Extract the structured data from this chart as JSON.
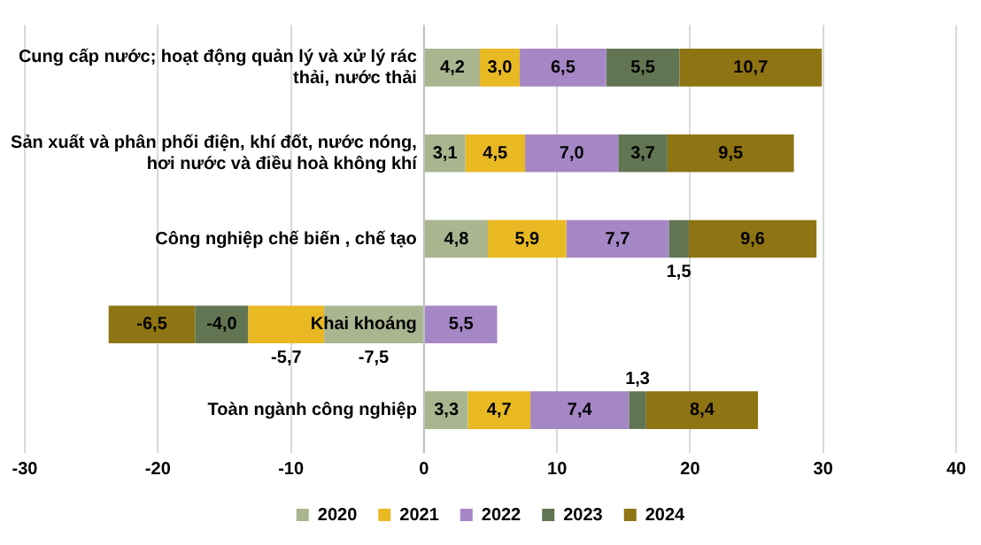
{
  "chart_data": {
    "type": "bar",
    "orientation": "horizontal",
    "stacked": true,
    "categories": [
      "Cung cấp nước; hoạt động quản lý và xử lý rác thải, nước thải",
      "Sản xuất và phân phối điện, khí đốt, nước nóng, hơi nước và điều hoà không khí",
      "Công nghiệp chế biến , chế tạo",
      "Khai khoáng",
      "Toàn ngành công nghiệp"
    ],
    "series": [
      {
        "name": "2020",
        "color": "#a9b58f",
        "values": [
          4.2,
          3.1,
          4.8,
          -7.5,
          3.3
        ],
        "value_labels": [
          "4,2",
          "3,1",
          "4,8",
          "-7,5",
          "3,3"
        ]
      },
      {
        "name": "2021",
        "color": "#e8b923",
        "values": [
          3.0,
          4.5,
          5.9,
          -5.7,
          4.7
        ],
        "value_labels": [
          "3,0",
          "4,5",
          "5,9",
          "-5,7",
          "4,7"
        ]
      },
      {
        "name": "2022",
        "color": "#a587c6",
        "values": [
          6.5,
          7.0,
          7.7,
          5.5,
          7.4
        ],
        "value_labels": [
          "6,5",
          "7,0",
          "7,7",
          "5,5",
          "7,4"
        ]
      },
      {
        "name": "2023",
        "color": "#627552",
        "values": [
          5.5,
          3.7,
          1.5,
          -4.0,
          1.3
        ],
        "value_labels": [
          "5,5",
          "3,7",
          "1,5",
          "-4,0",
          "1,3"
        ]
      },
      {
        "name": "2024",
        "color": "#8e7412",
        "values": [
          10.7,
          9.5,
          9.6,
          -6.5,
          8.4
        ],
        "value_labels": [
          "10,7",
          "9,5",
          "9,6",
          "-6,5",
          "8,4"
        ]
      }
    ],
    "xlim": [
      -30,
      40
    ],
    "xticks": [
      -30,
      -20,
      -10,
      0,
      10,
      20,
      30,
      40
    ],
    "grid": "x",
    "legend": "bottom"
  }
}
